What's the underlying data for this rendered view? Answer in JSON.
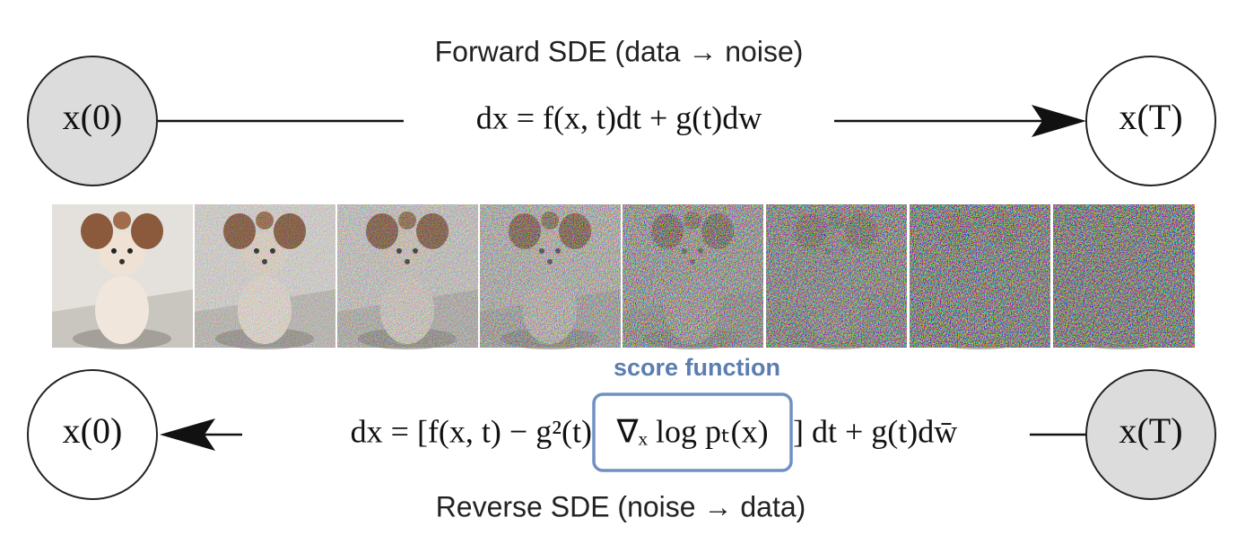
{
  "forward": {
    "title": "Forward SDE (data → noise)",
    "equation": "dx = f(x, t)dt + g(t)dw",
    "start_node": "x(0)",
    "end_node": "x(T)"
  },
  "reverse": {
    "title": "Reverse SDE (noise → data)",
    "equation_parts": [
      "dx = [f(x, t) − g²(t)",
      "∇ₓ log pₜ(x)",
      "] dt + g(t)dw̄"
    ],
    "score_label": "score function",
    "start_node": "x(T)",
    "end_node": "x(0)"
  }
}
